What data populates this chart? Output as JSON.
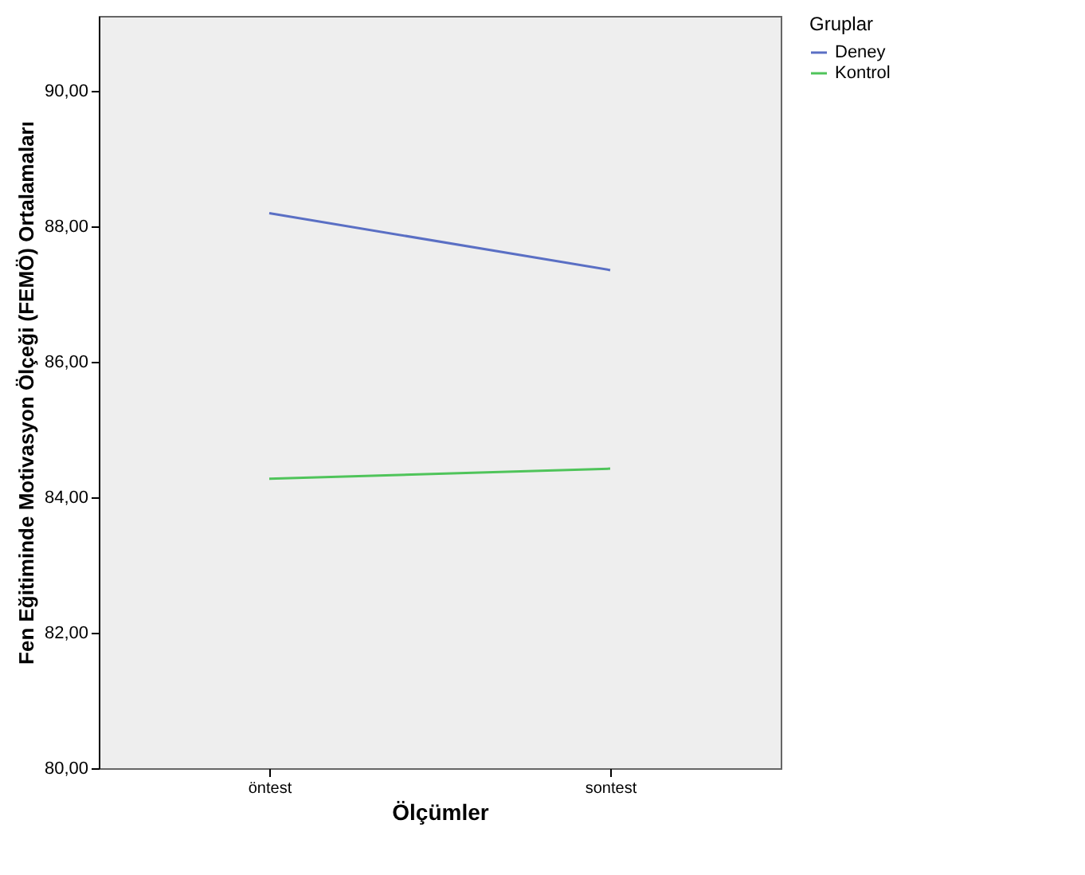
{
  "chart_data": {
    "type": "line",
    "xlabel": "Ölçümler",
    "ylabel": "Fen Eğitiminde Motivasyon Ölçeği (FEMÖ) Ortalamaları",
    "legend_title": "Gruplar",
    "categories": [
      "öntest",
      "sontest"
    ],
    "series": [
      {
        "name": "Deney",
        "color": "#5a6fc4",
        "values": [
          88.19,
          87.35
        ]
      },
      {
        "name": "Kontrol",
        "color": "#4fc45a",
        "values": [
          84.27,
          84.42
        ]
      }
    ],
    "ylim": [
      80,
      91.1
    ],
    "yticks": [
      {
        "value": 80,
        "label": "80,00"
      },
      {
        "value": 82,
        "label": "82,00"
      },
      {
        "value": 84,
        "label": "84,00"
      },
      {
        "value": 86,
        "label": "86,00"
      },
      {
        "value": 88,
        "label": "88,00"
      },
      {
        "value": 90,
        "label": "90,00"
      }
    ],
    "grid": false,
    "legend": "top right",
    "marker": "none",
    "line_style": "solid"
  }
}
